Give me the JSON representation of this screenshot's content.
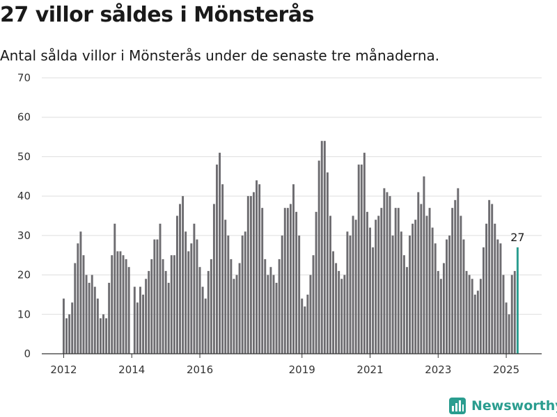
{
  "title": "27 villor såldes i Mönsterås",
  "subtitle": "Antal sålda villor i Mönsterås under de senaste tre månaderna.",
  "brand": {
    "name": "Newsworthy",
    "icon": "newsworthy-logo-icon",
    "color": "#2a9d8f"
  },
  "chart_data": {
    "type": "bar",
    "title": "27 villor såldes i Mönsterås",
    "subtitle": "Antal sålda villor i Mönsterås under de senaste tre månaderna.",
    "xlabel": "",
    "ylabel": "",
    "ylim": [
      0,
      70
    ],
    "yticks": [
      0,
      10,
      20,
      30,
      40,
      50,
      60,
      70
    ],
    "xtick_labels": [
      "2012",
      "2014",
      "2016",
      "2019",
      "2021",
      "2023",
      "2025"
    ],
    "start_month": "2012-01",
    "end_month": "2025-04",
    "grid": "horizontal",
    "bar_color": "#6d6c70",
    "highlight_color": "#2a9d8f",
    "highlight_label": "27",
    "values": [
      14,
      9,
      10,
      13,
      23,
      28,
      31,
      25,
      20,
      18,
      20,
      17,
      14,
      9,
      10,
      9,
      18,
      25,
      33,
      26,
      26,
      25,
      24,
      22,
      0,
      17,
      13,
      17,
      15,
      19,
      21,
      24,
      29,
      29,
      33,
      24,
      21,
      18,
      25,
      25,
      35,
      38,
      40,
      31,
      26,
      28,
      33,
      29,
      22,
      17,
      14,
      21,
      24,
      38,
      48,
      51,
      43,
      34,
      30,
      24,
      19,
      20,
      23,
      30,
      31,
      40,
      40,
      41,
      44,
      43,
      37,
      24,
      20,
      22,
      20,
      18,
      24,
      30,
      37,
      37,
      38,
      43,
      36,
      30,
      14,
      12,
      15,
      20,
      25,
      36,
      49,
      54,
      54,
      46,
      35,
      26,
      23,
      21,
      19,
      20,
      31,
      30,
      35,
      34,
      48,
      48,
      51,
      36,
      32,
      27,
      34,
      35,
      37,
      42,
      41,
      40,
      30,
      37,
      37,
      31,
      25,
      22,
      30,
      33,
      34,
      41,
      38,
      45,
      35,
      37,
      32,
      28,
      21,
      19,
      23,
      29,
      30,
      37,
      39,
      42,
      35,
      29,
      21,
      20,
      19,
      15,
      16,
      19,
      27,
      33,
      39,
      38,
      33,
      29,
      28,
      20,
      13,
      10,
      20,
      21,
      27
    ]
  }
}
